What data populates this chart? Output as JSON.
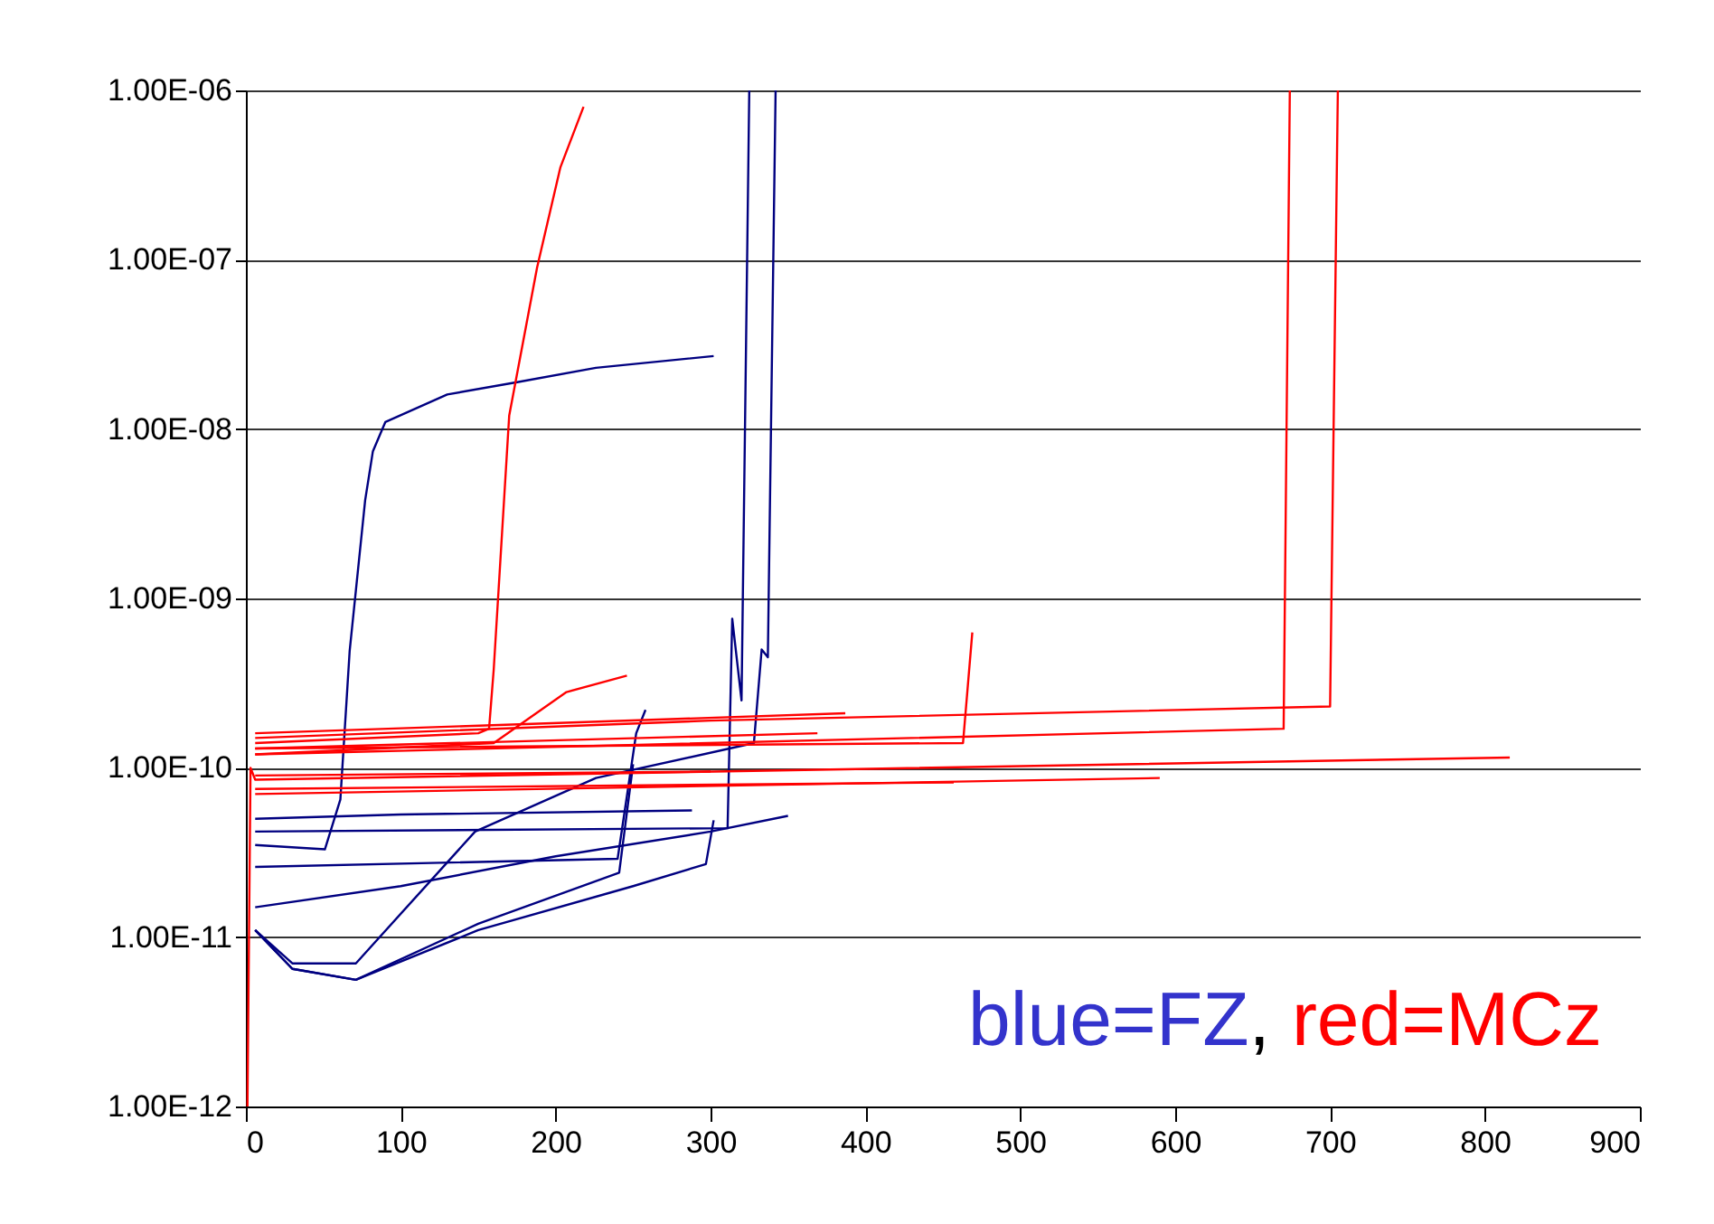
{
  "chart_data": {
    "type": "line",
    "xlim": [
      0,
      900
    ],
    "xticks": [
      0,
      100,
      200,
      300,
      400,
      500,
      600,
      700,
      800,
      900
    ],
    "ylim": [
      1e-12,
      1e-06
    ],
    "log": "y",
    "grid": "y",
    "marker": "none",
    "line_style": "solid",
    "yticks": [
      {
        "value": 1e-12,
        "label": "1.00E-12"
      },
      {
        "value": 1e-11,
        "label": "1.00E-11"
      },
      {
        "value": 1e-10,
        "label": "1.00E-10"
      },
      {
        "value": 1e-09,
        "label": "1.00E-09"
      },
      {
        "value": 1e-08,
        "label": "1.00E-08"
      },
      {
        "value": 1e-07,
        "label": "1.00E-07"
      },
      {
        "value": 1e-06,
        "label": "1.00E-06"
      }
    ],
    "annotations": [
      "blue=FZ",
      ",",
      "red=MCz"
    ],
    "series": [
      {
        "color": "#000080",
        "x": [
          6,
          51,
          61,
          67,
          77,
          82,
          90,
          130,
          176,
          226,
          302
        ],
        "values": [
          3.5e-11,
          3.3e-11,
          6.5e-11,
          4.9e-10,
          3.8e-09,
          7.4e-09,
          1.1e-08,
          1.6e-08,
          1.9e-08,
          2.3e-08,
          2.7e-08
        ]
      },
      {
        "color": "#000080",
        "x": [
          6,
          311,
          314,
          320,
          325
        ],
        "values": [
          4.2e-11,
          4.4e-11,
          7.6e-10,
          2.5e-10,
          1e-06
        ]
      },
      {
        "color": "#000080",
        "x": [
          6,
          100,
          288
        ],
        "values": [
          5e-11,
          5.3e-11,
          5.6e-11
        ]
      },
      {
        "color": "#000080",
        "x": [
          6,
          240,
          252,
          258
        ],
        "values": [
          2.6e-11,
          2.9e-11,
          1.6e-10,
          2.2e-10
        ]
      },
      {
        "color": "#000080",
        "x": [
          6,
          100,
          200,
          300,
          350
        ],
        "values": [
          1.5e-11,
          2e-11,
          3e-11,
          4.2e-11,
          5.2e-11
        ]
      },
      {
        "color": "#000080",
        "x": [
          6,
          30,
          71,
          148,
          226,
          328,
          333,
          337,
          342
        ],
        "values": [
          1.1e-11,
          7e-12,
          7e-12,
          4.2e-11,
          8.7e-11,
          1.4e-10,
          5e-10,
          4.5e-10,
          1e-06
        ]
      },
      {
        "color": "#000080",
        "x": [
          6,
          30,
          71,
          150,
          241,
          250
        ],
        "values": [
          1.1e-11,
          6.5e-12,
          5.6e-12,
          1.2e-11,
          2.4e-11,
          1.05e-10
        ]
      },
      {
        "color": "#000080",
        "x": [
          6,
          30,
          71,
          150,
          250,
          297,
          302
        ],
        "values": [
          1.1e-11,
          6.5e-12,
          5.6e-12,
          1.1e-11,
          2e-11,
          2.7e-11,
          4.9e-11
        ]
      },
      {
        "color": "#ff0000",
        "x": [
          6,
          150,
          157,
          160,
          170,
          188,
          203,
          218
        ],
        "values": [
          1.4e-10,
          1.6e-10,
          1.7e-10,
          3.8e-10,
          1.2e-08,
          9e-08,
          3.5e-07,
          8e-07
        ]
      },
      {
        "color": "#ff0000",
        "x": [
          6,
          160,
          207,
          246
        ],
        "values": [
          1.2e-10,
          1.4e-10,
          2.8e-10,
          3.5e-10
        ]
      },
      {
        "color": "#ff0000",
        "x": [
          6,
          463,
          469
        ],
        "values": [
          1.3e-10,
          1.4e-10,
          6.3e-10
        ]
      },
      {
        "color": "#ff0000",
        "x": [
          6,
          670,
          674
        ],
        "values": [
          1.2e-10,
          1.7e-10,
          1e-06
        ]
      },
      {
        "color": "#ff0000",
        "x": [
          6,
          300,
          700,
          705
        ],
        "values": [
          1.5e-10,
          1.9e-10,
          2.3e-10,
          1e-06
        ]
      },
      {
        "color": "#ff0000",
        "x": [
          1,
          3,
          6,
          816
        ],
        "values": [
          1e-12,
          1e-10,
          8.5e-11,
          1.15e-10
        ]
      },
      {
        "color": "#ff0000",
        "x": [
          6,
          590
        ],
        "values": [
          7e-11,
          8.7e-11
        ]
      },
      {
        "color": "#ff0000",
        "x": [
          6,
          457
        ],
        "values": [
          7.5e-11,
          8.2e-11
        ]
      },
      {
        "color": "#ff0000",
        "x": [
          6,
          387
        ],
        "values": [
          1.6e-10,
          2.1e-10
        ]
      },
      {
        "color": "#ff0000",
        "x": [
          6,
          369
        ],
        "values": [
          1.3e-10,
          1.6e-10
        ]
      },
      {
        "color": "#ff0000",
        "x": [
          6,
          300
        ],
        "values": [
          9e-11,
          9.5e-11
        ]
      }
    ]
  }
}
